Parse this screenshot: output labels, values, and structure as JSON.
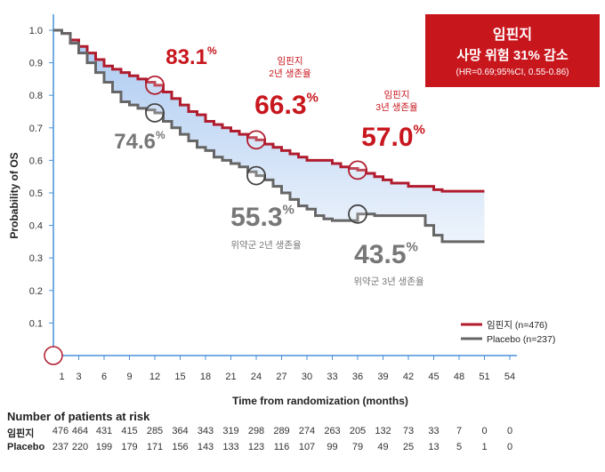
{
  "hr_box": {
    "title": "임핀지",
    "subtitle": "사망 위험 31% 감소",
    "ci": "(HR=0.69;95%CI, 0.55-0.86)",
    "color": "#c8161d"
  },
  "risk_table": {
    "title": "Number of patients at risk",
    "rows": [
      {
        "label": "임핀지",
        "values": [
          "476",
          "464",
          "431",
          "415",
          "285",
          "364",
          "343",
          "319",
          "298",
          "289",
          "274",
          "263",
          "205",
          "132",
          "73",
          "33",
          "7",
          "0",
          "0"
        ]
      },
      {
        "label": "Placebo",
        "values": [
          "237",
          "220",
          "199",
          "179",
          "171",
          "156",
          "143",
          "133",
          "123",
          "116",
          "107",
          "99",
          "79",
          "49",
          "25",
          "13",
          "5",
          "1",
          "0"
        ]
      }
    ]
  },
  "chart_data": {
    "type": "line",
    "xlabel": "Time from randomization (months)",
    "ylabel": "Probability of OS",
    "xlim": [
      0,
      54
    ],
    "ylim": [
      0,
      1.0
    ],
    "x_ticks": [
      1,
      3,
      6,
      9,
      12,
      15,
      18,
      21,
      24,
      27,
      30,
      33,
      36,
      39,
      42,
      45,
      48,
      51,
      54
    ],
    "y_ticks": [
      "0.1",
      "0.2",
      "0.3",
      "0.4",
      "0.5",
      "0.6",
      "0.7",
      "0.8",
      "0.9",
      "1.0"
    ],
    "legend_position": "bottom-right",
    "series": [
      {
        "name": "임핀지 (n=476)",
        "legend_label": "임핀지",
        "legend_n": "(n=476)",
        "color": "#b01c2e",
        "points": [
          [
            0,
            1.0
          ],
          [
            1,
            0.99
          ],
          [
            2,
            0.97
          ],
          [
            3,
            0.95
          ],
          [
            4,
            0.93
          ],
          [
            5,
            0.91
          ],
          [
            6,
            0.89
          ],
          [
            7,
            0.88
          ],
          [
            8,
            0.87
          ],
          [
            9,
            0.86
          ],
          [
            10,
            0.85
          ],
          [
            11,
            0.84
          ],
          [
            12,
            0.831
          ],
          [
            13,
            0.81
          ],
          [
            14,
            0.79
          ],
          [
            15,
            0.77
          ],
          [
            16,
            0.75
          ],
          [
            17,
            0.74
          ],
          [
            18,
            0.72
          ],
          [
            19,
            0.71
          ],
          [
            20,
            0.7
          ],
          [
            21,
            0.69
          ],
          [
            22,
            0.68
          ],
          [
            23,
            0.67
          ],
          [
            24,
            0.663
          ],
          [
            25,
            0.65
          ],
          [
            26,
            0.64
          ],
          [
            27,
            0.63
          ],
          [
            28,
            0.62
          ],
          [
            29,
            0.61
          ],
          [
            30,
            0.6
          ],
          [
            31,
            0.6
          ],
          [
            32,
            0.6
          ],
          [
            33,
            0.59
          ],
          [
            34,
            0.58
          ],
          [
            35,
            0.575
          ],
          [
            36,
            0.57
          ],
          [
            37,
            0.56
          ],
          [
            38,
            0.55
          ],
          [
            39,
            0.54
          ],
          [
            40,
            0.53
          ],
          [
            41,
            0.53
          ],
          [
            42,
            0.52
          ],
          [
            43,
            0.52
          ],
          [
            44,
            0.52
          ],
          [
            45,
            0.51
          ],
          [
            46,
            0.505
          ],
          [
            51,
            0.505
          ]
        ]
      },
      {
        "name": "Placebo (n=237)",
        "legend_label": "Placebo",
        "legend_n": "(n=237)",
        "color": "#666666",
        "points": [
          [
            0,
            1.0
          ],
          [
            1,
            0.99
          ],
          [
            2,
            0.96
          ],
          [
            3,
            0.93
          ],
          [
            4,
            0.9
          ],
          [
            5,
            0.87
          ],
          [
            6,
            0.84
          ],
          [
            7,
            0.81
          ],
          [
            8,
            0.78
          ],
          [
            9,
            0.77
          ],
          [
            10,
            0.76
          ],
          [
            11,
            0.755
          ],
          [
            12,
            0.746
          ],
          [
            13,
            0.72
          ],
          [
            14,
            0.7
          ],
          [
            15,
            0.68
          ],
          [
            16,
            0.66
          ],
          [
            17,
            0.64
          ],
          [
            18,
            0.63
          ],
          [
            19,
            0.61
          ],
          [
            20,
            0.6
          ],
          [
            21,
            0.59
          ],
          [
            22,
            0.58
          ],
          [
            23,
            0.565
          ],
          [
            24,
            0.553
          ],
          [
            25,
            0.54
          ],
          [
            26,
            0.52
          ],
          [
            27,
            0.5
          ],
          [
            28,
            0.48
          ],
          [
            29,
            0.46
          ],
          [
            30,
            0.45
          ],
          [
            31,
            0.43
          ],
          [
            32,
            0.42
          ],
          [
            33,
            0.415
          ],
          [
            34,
            0.415
          ],
          [
            35,
            0.415
          ],
          [
            36,
            0.435
          ],
          [
            37,
            0.435
          ],
          [
            38,
            0.43
          ],
          [
            39,
            0.43
          ],
          [
            40,
            0.43
          ],
          [
            41,
            0.43
          ],
          [
            42,
            0.43
          ],
          [
            43,
            0.43
          ],
          [
            44,
            0.4
          ],
          [
            45,
            0.37
          ],
          [
            46,
            0.35
          ],
          [
            51,
            0.35
          ]
        ]
      }
    ],
    "annotations": [
      {
        "series": 0,
        "x": 12,
        "y": 0.831,
        "value": "83.1",
        "unit": "%",
        "label": ""
      },
      {
        "series": 0,
        "x": 24,
        "y": 0.663,
        "value": "66.3",
        "unit": "%",
        "label_line1": "임핀지",
        "label_line2": "2년 생존율"
      },
      {
        "series": 0,
        "x": 36,
        "y": 0.57,
        "value": "57.0",
        "unit": "%",
        "label_line1": "임핀지",
        "label_line2": "3년 생존율"
      },
      {
        "series": 1,
        "x": 12,
        "y": 0.746,
        "value": "74.6",
        "unit": "%",
        "label": ""
      },
      {
        "series": 1,
        "x": 24,
        "y": 0.553,
        "value": "55.3",
        "unit": "%",
        "label": "위약군 2년 생존율"
      },
      {
        "series": 1,
        "x": 36,
        "y": 0.435,
        "value": "43.5",
        "unit": "%",
        "label": "위약군 3년 생존율"
      }
    ]
  }
}
